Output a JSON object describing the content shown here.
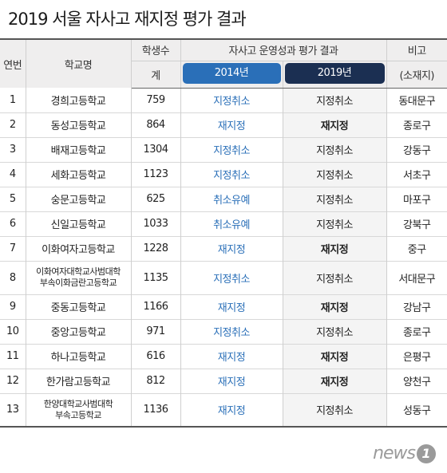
{
  "title": "2019 서울 자사고 재지정 평가 결과",
  "headers": {
    "no": "연번",
    "school": "학교명",
    "students_top": "학생수",
    "students_bottom": "계",
    "results": "자사고 운영성과 평가 결과",
    "year1": "2014년",
    "year2": "2019년",
    "note_top": "비고",
    "note_bottom": "(소재지)"
  },
  "rows": [
    {
      "no": "1",
      "school": "경희고등학교",
      "students": "759",
      "r2014": "지정취소",
      "r2019": "지정취소",
      "district": "동대문구"
    },
    {
      "no": "2",
      "school": "동성고등학교",
      "students": "864",
      "r2014": "재지정",
      "r2019": "재지정",
      "district": "종로구"
    },
    {
      "no": "3",
      "school": "배재고등학교",
      "students": "1304",
      "r2014": "지정취소",
      "r2019": "지정취소",
      "district": "강동구"
    },
    {
      "no": "4",
      "school": "세화고등학교",
      "students": "1123",
      "r2014": "지정취소",
      "r2019": "지정취소",
      "district": "서초구"
    },
    {
      "no": "5",
      "school": "숭문고등학교",
      "students": "625",
      "r2014": "취소유예",
      "r2019": "지정취소",
      "district": "마포구"
    },
    {
      "no": "6",
      "school": "신일고등학교",
      "students": "1033",
      "r2014": "취소유예",
      "r2019": "지정취소",
      "district": "강북구"
    },
    {
      "no": "7",
      "school": "이화여자고등학교",
      "students": "1228",
      "r2014": "재지정",
      "r2019": "재지정",
      "district": "중구"
    },
    {
      "no": "8",
      "school_line1": "이화여자대학교사범대학",
      "school_line2": "부속이화금란고등학교",
      "students": "1135",
      "r2014": "지정취소",
      "r2019": "지정취소",
      "district": "서대문구"
    },
    {
      "no": "9",
      "school": "중동고등학교",
      "students": "1166",
      "r2014": "재지정",
      "r2019": "재지정",
      "district": "강남구"
    },
    {
      "no": "10",
      "school": "중앙고등학교",
      "students": "971",
      "r2014": "지정취소",
      "r2019": "지정취소",
      "district": "종로구"
    },
    {
      "no": "11",
      "school": "하나고등학교",
      "students": "616",
      "r2014": "재지정",
      "r2019": "재지정",
      "district": "은평구"
    },
    {
      "no": "12",
      "school": "한가람고등학교",
      "students": "812",
      "r2014": "재지정",
      "r2019": "재지정",
      "district": "양천구"
    },
    {
      "no": "13",
      "school_line1": "한양대학교사범대학",
      "school_line2": "부속고등학교",
      "students": "1136",
      "r2014": "재지정",
      "r2019": "지정취소",
      "district": "성동구"
    }
  ],
  "logo": {
    "text": "news",
    "badge": "1"
  },
  "colors": {
    "accent_2014": "#2a6fb8",
    "accent_2019": "#1b2f52"
  }
}
